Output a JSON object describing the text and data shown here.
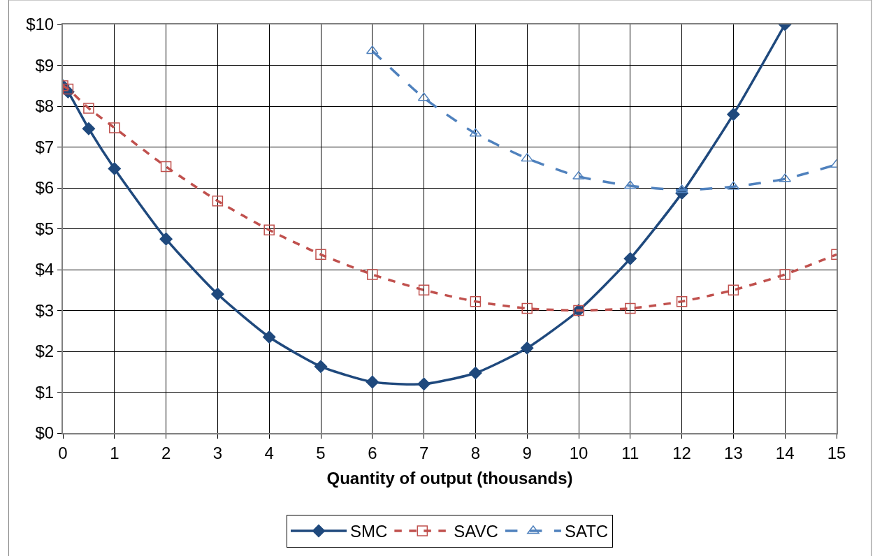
{
  "chart_data": {
    "type": "line",
    "xlabel": "Quantity of output (thousands)",
    "xlim": [
      0,
      15
    ],
    "xticks": [
      0,
      1,
      2,
      3,
      4,
      5,
      6,
      7,
      8,
      9,
      10,
      11,
      12,
      13,
      14,
      15
    ],
    "ylim": [
      0,
      10
    ],
    "yticks": [
      {
        "value": 0,
        "label": "$0"
      },
      {
        "value": 1,
        "label": "$1"
      },
      {
        "value": 2,
        "label": "$2"
      },
      {
        "value": 3,
        "label": "$3"
      },
      {
        "value": 4,
        "label": "$4"
      },
      {
        "value": 5,
        "label": "$5"
      },
      {
        "value": 6,
        "label": "$6"
      },
      {
        "value": 7,
        "label": "$7"
      },
      {
        "value": 8,
        "label": "$8"
      },
      {
        "value": 9,
        "label": "$9"
      },
      {
        "value": 10,
        "label": "$10"
      }
    ],
    "grid": true,
    "legend": "bottom",
    "series": [
      {
        "name": "SMC",
        "color": "#1f497d",
        "marker": "diamond",
        "line_style": "solid",
        "x": [
          0,
          0.1,
          0.5,
          1,
          2,
          3,
          4,
          5,
          6,
          7,
          8,
          9,
          10,
          11,
          12,
          13,
          14
        ],
        "values": [
          8.5,
          8.35,
          7.45,
          6.47,
          4.75,
          3.4,
          2.35,
          1.63,
          1.25,
          1.2,
          1.47,
          2.08,
          3.0,
          4.27,
          5.87,
          7.8,
          10.0
        ]
      },
      {
        "name": "SAVC",
        "color": "#c0504d",
        "marker": "square",
        "line_style": "dashed",
        "x": [
          0,
          0.1,
          0.5,
          1,
          2,
          3,
          4,
          5,
          6,
          7,
          8,
          9,
          10,
          11,
          12,
          13,
          14,
          15
        ],
        "values": [
          8.5,
          8.42,
          7.95,
          7.47,
          6.52,
          5.68,
          4.97,
          4.37,
          3.88,
          3.5,
          3.22,
          3.05,
          3.0,
          3.05,
          3.22,
          3.5,
          3.88,
          4.37
        ]
      },
      {
        "name": "SATC",
        "color": "#4f81bd",
        "marker": "triangle",
        "line_style": "longdash",
        "x": [
          6,
          7,
          8,
          9,
          10,
          11,
          12,
          13,
          14,
          15
        ],
        "values": [
          9.35,
          8.2,
          7.33,
          6.72,
          6.28,
          6.05,
          5.95,
          6.03,
          6.22,
          6.57
        ]
      }
    ]
  }
}
